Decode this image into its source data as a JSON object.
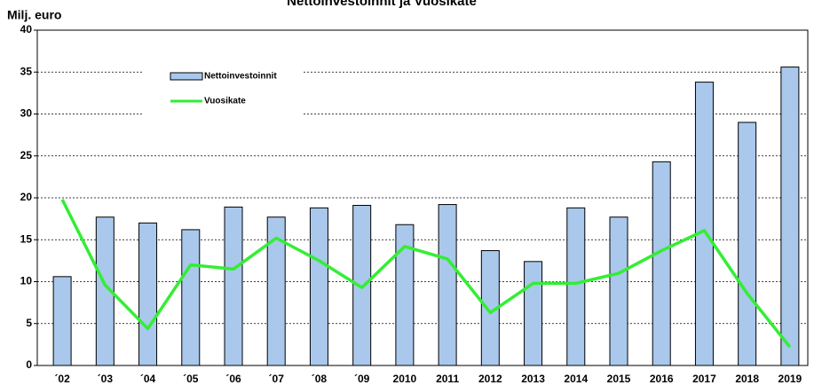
{
  "chart_data": {
    "type": "bar_line",
    "title": "Nettoinvestoinnit ja Vuosikate",
    "y_label": "Milj. euro",
    "categories": [
      "´02",
      "´03",
      "´04",
      "´05",
      "´06",
      "´07",
      "´08",
      "´09",
      "2010",
      "2011",
      "2012",
      "2013",
      "2014",
      "2015",
      "2016",
      "2017",
      "2018",
      "2019"
    ],
    "series": [
      {
        "name": "Nettoinvestoinnit",
        "type": "bar",
        "color": "#a9c8ec",
        "values": [
          10.6,
          17.7,
          17.0,
          16.2,
          18.9,
          17.7,
          18.8,
          19.1,
          16.8,
          19.2,
          13.7,
          12.4,
          18.8,
          17.7,
          24.3,
          33.8,
          29.0,
          35.6
        ]
      },
      {
        "name": "Vuosikate",
        "type": "line",
        "color": "#33ee33",
        "values": [
          19.8,
          9.6,
          4.4,
          12.0,
          11.5,
          15.2,
          12.5,
          9.3,
          14.2,
          12.7,
          6.3,
          9.8,
          9.8,
          11.0,
          13.7,
          16.1,
          8.6,
          2.2
        ]
      }
    ],
    "ylim": [
      0,
      40
    ],
    "yticks": [
      0,
      5,
      10,
      15,
      20,
      25,
      30,
      35,
      40
    ],
    "grid": true
  }
}
